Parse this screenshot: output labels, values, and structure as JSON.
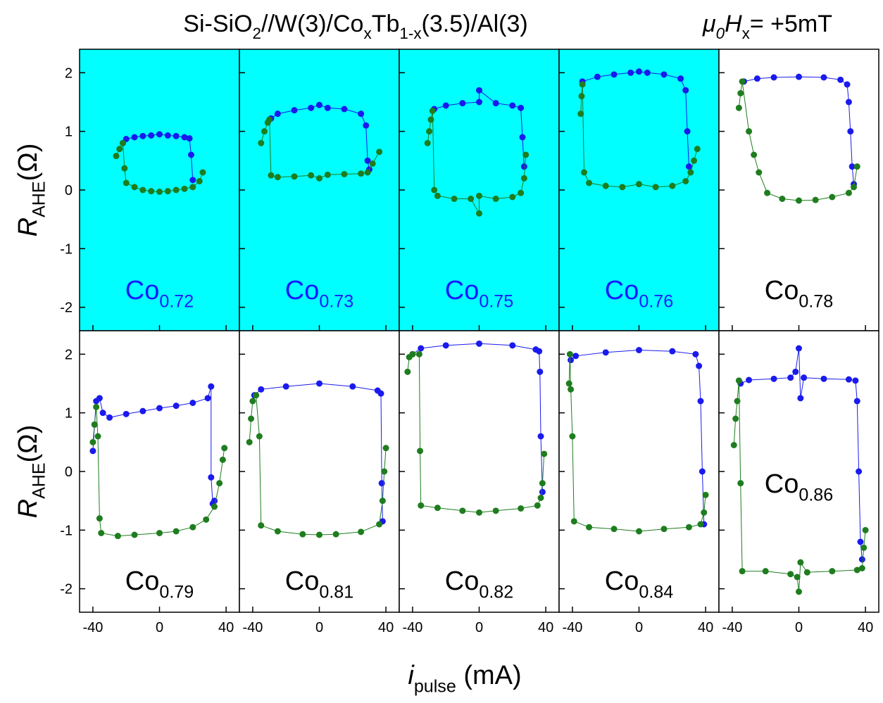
{
  "title_parts": [
    "Si-SiO",
    "2",
    "//W(3)/Co",
    "x",
    "Tb",
    "1-x",
    "(3.5)/Al(3)"
  ],
  "field_parts": [
    "μ",
    "0",
    "H",
    "x",
    "= +5mT"
  ],
  "y_label_parts": [
    "R",
    "AHE",
    "(Ω)"
  ],
  "x_label_parts": [
    "i",
    "pulse",
    " (mA)"
  ],
  "chart_data": [
    {
      "type": "scatter",
      "label": [
        "Co",
        "0.72"
      ],
      "background": "#00ffff",
      "label_color": "#1a1aff",
      "xlim": [
        -48,
        48
      ],
      "ylim": [
        -2.4,
        2.4
      ],
      "xticks": [
        -40,
        0,
        40
      ],
      "yticks": [
        -2,
        -1,
        0,
        1,
        2
      ],
      "series": [
        {
          "color": "#1a1aee",
          "x": [
            -22,
            -20,
            -15,
            -10,
            -5,
            0,
            5,
            10,
            15,
            18,
            19,
            20
          ],
          "values": [
            0.8,
            0.87,
            0.9,
            0.92,
            0.93,
            0.95,
            0.93,
            0.92,
            0.9,
            0.88,
            0.6,
            0.17
          ]
        },
        {
          "color": "#1e7d1e",
          "x": [
            -26,
            -24,
            -22,
            -21,
            -20,
            -15,
            -10,
            -5,
            0,
            5,
            10,
            15,
            20,
            24,
            26
          ],
          "values": [
            0.58,
            0.7,
            0.8,
            0.37,
            0.12,
            0.05,
            0.0,
            -0.02,
            -0.03,
            -0.02,
            0.0,
            0.02,
            0.05,
            0.15,
            0.3
          ]
        }
      ]
    },
    {
      "type": "scatter",
      "label": [
        "Co",
        "0.73"
      ],
      "background": "#00ffff",
      "label_color": "#1a1aff",
      "xlim": [
        -48,
        48
      ],
      "ylim": [
        -2.4,
        2.4
      ],
      "xticks": [
        -40,
        0,
        40
      ],
      "yticks": [
        -2,
        -1,
        0,
        1,
        2
      ],
      "series": [
        {
          "color": "#1a1aee",
          "x": [
            -29,
            -25,
            -15,
            -5,
            0,
            5,
            15,
            25,
            28,
            29,
            30
          ],
          "values": [
            1.22,
            1.3,
            1.36,
            1.4,
            1.45,
            1.4,
            1.38,
            1.3,
            1.1,
            0.5,
            0.35
          ]
        },
        {
          "color": "#1e7d1e",
          "x": [
            -35,
            -33,
            -31,
            -30,
            -29,
            -25,
            -15,
            -5,
            0,
            5,
            15,
            25,
            29,
            32,
            36
          ],
          "values": [
            0.8,
            1.0,
            1.15,
            1.2,
            0.25,
            0.22,
            0.23,
            0.25,
            0.2,
            0.26,
            0.27,
            0.28,
            0.3,
            0.45,
            0.65
          ]
        }
      ]
    },
    {
      "type": "scatter",
      "label": [
        "Co",
        "0.75"
      ],
      "background": "#00ffff",
      "label_color": "#1a1aff",
      "xlim": [
        -48,
        48
      ],
      "ylim": [
        -2.4,
        2.4
      ],
      "xticks": [
        -40,
        0,
        40
      ],
      "yticks": [
        -2,
        -1,
        0,
        1,
        2
      ],
      "series": [
        {
          "color": "#1a1aee",
          "x": [
            -27,
            -20,
            -10,
            0,
            0,
            10,
            20,
            25,
            26,
            27
          ],
          "values": [
            1.38,
            1.44,
            1.48,
            1.5,
            1.7,
            1.48,
            1.44,
            1.4,
            0.9,
            0.4
          ]
        },
        {
          "color": "#1e7d1e",
          "x": [
            -31,
            -30,
            -29,
            -28,
            -27,
            -25,
            -15,
            -5,
            0,
            0,
            10,
            20,
            25,
            27,
            28
          ],
          "values": [
            0.8,
            1.0,
            1.2,
            1.35,
            0.0,
            -0.1,
            -0.15,
            -0.15,
            -0.4,
            -0.1,
            -0.15,
            -0.12,
            -0.05,
            0.2,
            0.6
          ]
        }
      ]
    },
    {
      "type": "scatter",
      "label": [
        "Co",
        "0.76"
      ],
      "background": "#00ffff",
      "label_color": "#1a1aff",
      "xlim": [
        -48,
        48
      ],
      "ylim": [
        -2.4,
        2.4
      ],
      "xticks": [
        -40,
        0,
        40
      ],
      "yticks": [
        -2,
        -1,
        0,
        1,
        2
      ],
      "series": [
        {
          "color": "#1a1aee",
          "x": [
            -34,
            -25,
            -15,
            -5,
            0,
            5,
            15,
            25,
            28,
            29,
            30
          ],
          "values": [
            1.85,
            1.93,
            1.97,
            2.0,
            2.02,
            2.0,
            1.97,
            1.9,
            1.7,
            1.0,
            0.4
          ]
        },
        {
          "color": "#1e7d1e",
          "x": [
            -35,
            -34.5,
            -34,
            -33,
            -30,
            -20,
            -10,
            0,
            10,
            20,
            28,
            31,
            33,
            35
          ],
          "values": [
            1.3,
            1.6,
            1.8,
            0.3,
            0.12,
            0.07,
            0.05,
            0.1,
            0.05,
            0.07,
            0.15,
            0.3,
            0.5,
            0.7
          ]
        }
      ]
    },
    {
      "type": "scatter",
      "label": [
        "Co",
        "0.78"
      ],
      "background": "#ffffff",
      "label_color": "#000000",
      "xlim": [
        -48,
        48
      ],
      "ylim": [
        -2.4,
        2.4
      ],
      "xticks": [
        -40,
        0,
        40
      ],
      "yticks": [
        -2,
        -1,
        0,
        1,
        2
      ],
      "series": [
        {
          "color": "#1a1aee",
          "x": [
            -33,
            -25,
            -15,
            0,
            15,
            25,
            29,
            30,
            31,
            32,
            33
          ],
          "values": [
            1.85,
            1.9,
            1.92,
            1.93,
            1.92,
            1.88,
            1.8,
            1.5,
            1.0,
            0.4,
            0.1
          ]
        },
        {
          "color": "#1e7d1e",
          "x": [
            -36,
            -35,
            -34,
            -30,
            -27,
            -24,
            -19,
            -10,
            0,
            10,
            20,
            30,
            33,
            35
          ],
          "values": [
            1.4,
            1.65,
            1.85,
            1.0,
            0.6,
            0.3,
            -0.05,
            -0.15,
            -0.18,
            -0.17,
            -0.12,
            -0.05,
            0.05,
            0.4
          ]
        }
      ]
    },
    {
      "type": "scatter",
      "label": [
        "Co",
        "0.79"
      ],
      "background": "#ffffff",
      "label_color": "#000000",
      "xlim": [
        -48,
        48
      ],
      "ylim": [
        -2.4,
        2.4
      ],
      "xticks": [
        -40,
        0,
        40
      ],
      "yticks": [
        -2,
        -1,
        0,
        1,
        2
      ],
      "series": [
        {
          "color": "#1a1aee",
          "x": [
            -40,
            -39,
            -38,
            -36,
            -34,
            -30,
            -20,
            -10,
            0,
            10,
            20,
            29,
            31,
            31,
            32,
            33
          ],
          "values": [
            0.35,
            0.8,
            1.2,
            1.25,
            1.0,
            0.92,
            0.98,
            1.03,
            1.08,
            1.12,
            1.17,
            1.25,
            1.45,
            -0.1,
            -0.55,
            -0.5
          ]
        },
        {
          "color": "#1e7d1e",
          "x": [
            -40,
            -39,
            -38,
            -37,
            -36,
            -35,
            -25,
            -15,
            0,
            10,
            20,
            28,
            33,
            36,
            38,
            39
          ],
          "values": [
            0.5,
            0.8,
            1.1,
            0.6,
            -0.8,
            -1.05,
            -1.1,
            -1.08,
            -1.05,
            -1.02,
            -0.95,
            -0.82,
            -0.6,
            -0.2,
            0.2,
            0.4
          ]
        }
      ]
    },
    {
      "type": "scatter",
      "label": [
        "Co",
        "0.81"
      ],
      "background": "#ffffff",
      "label_color": "#000000",
      "xlim": [
        -48,
        48
      ],
      "ylim": [
        -2.4,
        2.4
      ],
      "xticks": [
        -40,
        0,
        40
      ],
      "yticks": [
        -2,
        -1,
        0,
        1,
        2
      ],
      "series": [
        {
          "color": "#1a1aee",
          "x": [
            -39,
            -35,
            -20,
            0,
            20,
            35,
            37,
            37.5,
            38
          ],
          "values": [
            1.3,
            1.4,
            1.45,
            1.5,
            1.45,
            1.38,
            1.33,
            -0.2,
            -0.85
          ]
        },
        {
          "color": "#1e7d1e",
          "x": [
            -42,
            -41,
            -40,
            -38,
            -36,
            -35,
            -25,
            -10,
            0,
            10,
            25,
            36,
            38,
            39,
            40
          ],
          "values": [
            0.5,
            0.9,
            1.2,
            1.3,
            0.6,
            -0.92,
            -1.02,
            -1.07,
            -1.08,
            -1.07,
            -1.03,
            -0.9,
            -0.5,
            0.0,
            0.4
          ]
        }
      ]
    },
    {
      "type": "scatter",
      "label": [
        "Co",
        "0.82"
      ],
      "background": "#ffffff",
      "label_color": "#000000",
      "xlim": [
        -48,
        48
      ],
      "ylim": [
        -2.4,
        2.4
      ],
      "xticks": [
        -40,
        0,
        40
      ],
      "yticks": [
        -2,
        -1,
        0,
        1,
        2
      ],
      "series": [
        {
          "color": "#1a1aee",
          "x": [
            -40,
            -35,
            -20,
            0,
            20,
            34,
            36,
            36.5,
            37,
            38
          ],
          "values": [
            2.0,
            2.1,
            2.15,
            2.18,
            2.15,
            2.08,
            2.05,
            1.7,
            0.6,
            -0.35
          ]
        },
        {
          "color": "#1e7d1e",
          "x": [
            -43,
            -42,
            -40,
            -36,
            -35.5,
            -35,
            -25,
            -10,
            0,
            10,
            25,
            35,
            37,
            38,
            39
          ],
          "values": [
            1.7,
            1.95,
            2.0,
            2.0,
            0.35,
            -0.58,
            -0.62,
            -0.67,
            -0.7,
            -0.67,
            -0.63,
            -0.58,
            -0.45,
            -0.2,
            0.3
          ]
        }
      ]
    },
    {
      "type": "scatter",
      "label": [
        "Co",
        "0.84"
      ],
      "background": "#ffffff",
      "label_color": "#000000",
      "xlim": [
        -48,
        48
      ],
      "ylim": [
        -2.4,
        2.4
      ],
      "xticks": [
        -40,
        0,
        40
      ],
      "yticks": [
        -2,
        -1,
        0,
        1,
        2
      ],
      "series": [
        {
          "color": "#1a1aee",
          "x": [
            -41,
            -38,
            -20,
            0,
            20,
            34,
            36,
            37,
            38,
            39
          ],
          "values": [
            1.9,
            1.97,
            2.03,
            2.07,
            2.05,
            2.0,
            1.8,
            1.2,
            0.0,
            -0.9
          ]
        },
        {
          "color": "#1e7d1e",
          "x": [
            -42,
            -41.5,
            -41,
            -40,
            -39,
            -30,
            -15,
            0,
            15,
            30,
            37,
            39,
            40
          ],
          "values": [
            1.5,
            2.0,
            1.4,
            0.6,
            -0.85,
            -0.95,
            -0.98,
            -1.02,
            -0.98,
            -0.95,
            -0.9,
            -0.7,
            -0.4
          ]
        }
      ]
    },
    {
      "type": "scatter",
      "label": [
        "Co",
        "0.86"
      ],
      "background": "#ffffff",
      "label_color": "#000000",
      "xlim": [
        -48,
        48
      ],
      "ylim": [
        -2.4,
        2.4
      ],
      "xticks": [
        -40,
        0,
        40
      ],
      "yticks": [
        -2,
        -1,
        0,
        1,
        2
      ],
      "series": [
        {
          "color": "#1a1aee",
          "x": [
            -35,
            -30,
            -15,
            -5,
            -2,
            0,
            1,
            3,
            15,
            30,
            34,
            35,
            36,
            37,
            38
          ],
          "values": [
            1.5,
            1.56,
            1.58,
            1.6,
            1.7,
            2.1,
            1.25,
            1.6,
            1.58,
            1.57,
            1.55,
            1.2,
            0.0,
            -1.2,
            -1.5
          ]
        },
        {
          "color": "#1e7d1e",
          "x": [
            -39,
            -38,
            -37,
            -36,
            -35,
            -34,
            -20,
            -5,
            -1,
            0,
            1,
            5,
            20,
            35,
            38,
            39,
            40
          ],
          "values": [
            0.45,
            0.9,
            1.2,
            1.55,
            -0.2,
            -1.7,
            -1.7,
            -1.75,
            -1.8,
            -2.05,
            -1.55,
            -1.72,
            -1.7,
            -1.68,
            -1.65,
            -1.3,
            -1.0
          ]
        }
      ]
    }
  ]
}
